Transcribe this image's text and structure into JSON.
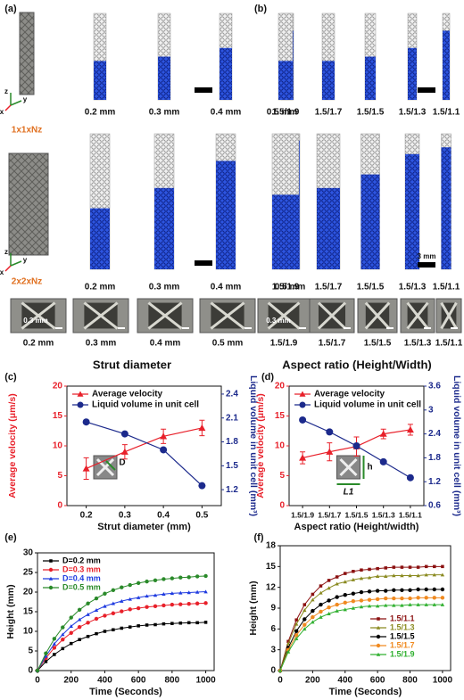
{
  "panel_a": {
    "label": "(a)",
    "axes": [
      "z",
      "y",
      "x"
    ],
    "cell_1": "1x1xNz",
    "cell_2": "2x2xNz",
    "row1_labels": [
      "0.2 mm",
      "0.3 mm",
      "0.4 mm",
      "0.5 mm"
    ],
    "row2_labels": [
      "0.2 mm",
      "0.3 mm",
      "0.4 mm",
      "0.5 mm"
    ],
    "micro_labels": [
      "0.2 mm",
      "0.3 mm",
      "0.4 mm",
      "0.5 mm"
    ],
    "scale_text": "0.3 mm",
    "title": "Strut diameter"
  },
  "panel_b": {
    "label": "(b)",
    "row1_labels": [
      "1.5/1.9",
      "1.5/1.7",
      "1.5/1.5",
      "1.5/1.3",
      "1.5/1.1"
    ],
    "row2_labels": [
      "1.5/1.9",
      "1.5/1.7",
      "1.5/1.5",
      "1.5/1.3",
      "1.5/1.1"
    ],
    "micro_labels": [
      "1.5/1.9",
      "1.5/1.7",
      "1.5/1.5",
      "1.5/1.3",
      "1.5/1.1"
    ],
    "scale_text": "0.3 mm",
    "scale_bar": "3 mm",
    "title": "Aspect ratio (Height/Width)"
  },
  "chart_data": [
    {
      "type": "line",
      "panel_label": "(c)",
      "xlabel": "Strut diameter (mm)",
      "ylabel": "Average velocity (μm/s)",
      "y2label": "Liquid volume in unit cell (mm³)",
      "annotations": [
        "D"
      ],
      "x": [
        0.2,
        0.3,
        0.4,
        0.5
      ],
      "xlim": [
        0.15,
        0.55
      ],
      "xticks": [
        0.2,
        0.3,
        0.4,
        0.5
      ],
      "ylim": [
        0,
        20
      ],
      "yticks": [
        0,
        5,
        10,
        15,
        20
      ],
      "y2lim": [
        1.0,
        2.5
      ],
      "y2ticks": [
        1.2,
        1.5,
        1.8,
        2.1,
        2.4
      ],
      "legend": "upper left",
      "series": [
        {
          "name": "Average velocity",
          "color": "#e8202a",
          "marker": "triangle",
          "values": [
            6.2,
            9.0,
            11.6,
            13.0
          ],
          "errors": [
            1.8,
            1.2,
            1.2,
            1.3
          ]
        },
        {
          "name": "Liquid volume in unit cell",
          "color": "#1c2a8c",
          "marker": "circle",
          "axis": "y2",
          "values": [
            2.05,
            1.9,
            1.7,
            1.25
          ]
        }
      ]
    },
    {
      "type": "line",
      "panel_label": "(d)",
      "xlabel": "Aspect ratio (Height/width)",
      "ylabel": "Average velocity (μm/s)",
      "y2label": "Liquid volume in unit cell (mm³)",
      "annotations": [
        "h",
        "L1"
      ],
      "categories": [
        "1.5/1.9",
        "1.5/1.7",
        "1.5/1.5",
        "1.5/1.3",
        "1.5/1.1"
      ],
      "ylim": [
        0,
        20
      ],
      "yticks": [
        0,
        5,
        10,
        15,
        20
      ],
      "y2lim": [
        0.6,
        3.6
      ],
      "y2ticks": [
        0.6,
        1.2,
        1.8,
        2.4,
        3.0,
        3.6
      ],
      "legend": "upper left",
      "series": [
        {
          "name": "Average velocity",
          "color": "#e8202a",
          "marker": "triangle",
          "values": [
            8.0,
            9.0,
            9.9,
            12.0,
            12.7
          ],
          "errors": [
            1.0,
            1.5,
            1.6,
            0.8,
            0.9
          ]
        },
        {
          "name": "Liquid volume in unit cell",
          "color": "#1c2a8c",
          "marker": "circle",
          "axis": "y2",
          "values": [
            2.75,
            2.45,
            2.1,
            1.7,
            1.3
          ]
        }
      ]
    },
    {
      "type": "line",
      "panel_label": "(e)",
      "xlabel": "Time (Seconds)",
      "ylabel": "Height (mm)",
      "legend": "upper left",
      "x": [
        0,
        50,
        100,
        150,
        200,
        250,
        300,
        350,
        400,
        450,
        500,
        550,
        600,
        650,
        700,
        750,
        800,
        850,
        900,
        950,
        1000
      ],
      "xlim": [
        0,
        1050
      ],
      "xticks": [
        0,
        200,
        400,
        600,
        800,
        1000
      ],
      "ylim": [
        0,
        30
      ],
      "yticks": [
        0,
        5,
        10,
        15,
        20,
        25,
        30
      ],
      "series": [
        {
          "name": "D=0.2 mm",
          "color": "#000000",
          "marker": "square",
          "values": [
            0,
            2.3,
            4.1,
            5.6,
            6.9,
            7.9,
            8.7,
            9.4,
            10.0,
            10.4,
            10.8,
            11.1,
            11.4,
            11.6,
            11.7,
            11.9,
            12.0,
            12.1,
            12.2,
            12.2,
            12.3
          ]
        },
        {
          "name": "D=0.3 mm",
          "color": "#e8202a",
          "marker": "circle",
          "values": [
            0,
            3.2,
            5.8,
            7.9,
            9.6,
            11.1,
            12.2,
            13.2,
            14.0,
            14.6,
            15.1,
            15.6,
            15.9,
            16.2,
            16.4,
            16.6,
            16.8,
            16.9,
            17.0,
            17.1,
            17.2
          ]
        },
        {
          "name": "D=0.4 mm",
          "color": "#1f3be0",
          "marker": "triangle",
          "values": [
            0,
            3.7,
            6.8,
            9.2,
            11.3,
            13.0,
            14.3,
            15.4,
            16.4,
            17.1,
            17.7,
            18.2,
            18.6,
            19.0,
            19.2,
            19.5,
            19.7,
            19.8,
            19.9,
            20.0,
            20.1
          ]
        },
        {
          "name": "D=0.5 mm",
          "color": "#2a8a2a",
          "marker": "circle",
          "values": [
            0,
            4.4,
            8.1,
            11.0,
            13.5,
            15.5,
            17.1,
            18.4,
            19.6,
            20.5,
            21.2,
            21.8,
            22.3,
            22.7,
            23.0,
            23.3,
            23.5,
            23.7,
            23.8,
            24.0,
            24.1
          ]
        }
      ]
    },
    {
      "type": "line",
      "panel_label": "(f)",
      "xlabel": "Time (Seconds)",
      "ylabel": "Height (mm)",
      "legend": "lower right",
      "x": [
        0,
        50,
        100,
        150,
        200,
        250,
        300,
        350,
        400,
        450,
        500,
        550,
        600,
        650,
        700,
        750,
        800,
        850,
        900,
        950,
        1000
      ],
      "xlim": [
        0,
        1050
      ],
      "xticks": [
        0,
        200,
        400,
        600,
        800,
        1000
      ],
      "ylim": [
        0,
        18
      ],
      "yticks": [
        0,
        3,
        6,
        9,
        12,
        15,
        18
      ],
      "series": [
        {
          "name": "1.5/1.1",
          "color": "#8b1010",
          "marker": "square",
          "values": [
            0,
            4.2,
            7.3,
            9.5,
            11.0,
            12.2,
            13.0,
            13.5,
            14.0,
            14.3,
            14.5,
            14.6,
            14.7,
            14.8,
            14.9,
            14.9,
            14.9,
            14.9,
            15.0,
            15.0,
            15.0
          ]
        },
        {
          "name": "1.5/1.3",
          "color": "#8a8a20",
          "marker": "triangle",
          "values": [
            0,
            3.9,
            6.7,
            8.7,
            10.2,
            11.2,
            11.9,
            12.5,
            12.8,
            13.1,
            13.3,
            13.4,
            13.6,
            13.6,
            13.7,
            13.7,
            13.7,
            13.7,
            13.8,
            13.8,
            13.8
          ]
        },
        {
          "name": "1.5/1.5",
          "color": "#000000",
          "marker": "circle",
          "values": [
            0,
            3.3,
            5.7,
            7.4,
            8.6,
            9.5,
            10.1,
            10.6,
            10.9,
            11.1,
            11.3,
            11.4,
            11.5,
            11.5,
            11.6,
            11.6,
            11.6,
            11.7,
            11.7,
            11.7,
            11.7
          ]
        },
        {
          "name": "1.5/1.7",
          "color": "#f08a20",
          "marker": "circle",
          "values": [
            0,
            3.0,
            5.1,
            6.6,
            7.7,
            8.5,
            9.1,
            9.5,
            9.8,
            10.0,
            10.1,
            10.2,
            10.3,
            10.4,
            10.4,
            10.4,
            10.4,
            10.5,
            10.5,
            10.5,
            10.5
          ]
        },
        {
          "name": "1.5/1.9",
          "color": "#30b030",
          "marker": "triangle",
          "values": [
            0,
            2.7,
            4.6,
            6.0,
            7.0,
            7.7,
            8.2,
            8.6,
            8.8,
            9.0,
            9.2,
            9.3,
            9.3,
            9.4,
            9.4,
            9.4,
            9.5,
            9.5,
            9.5,
            9.5,
            9.5
          ]
        }
      ]
    }
  ]
}
